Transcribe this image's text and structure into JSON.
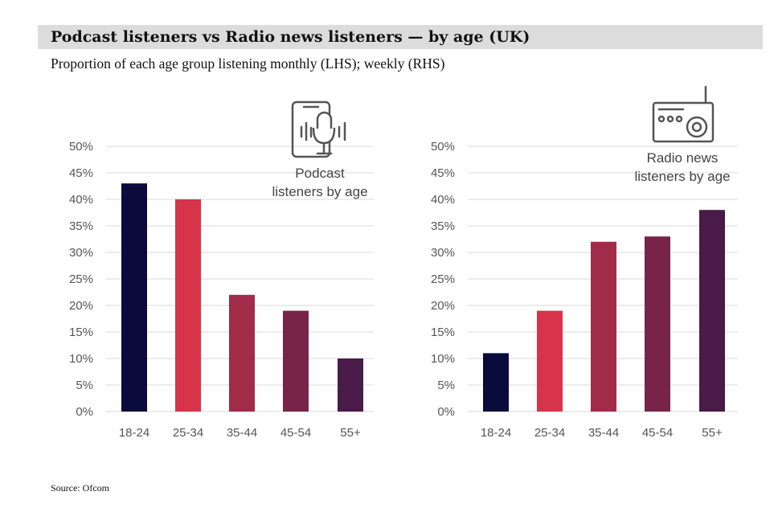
{
  "header": {
    "title": "Podcast listeners vs Radio news listeners — by age (UK)",
    "subtitle": "Proportion of each age group listening monthly (LHS); weekly (RHS)"
  },
  "footer": {
    "source": "Source: Ofcom"
  },
  "colors": {
    "bars": [
      "#0b0a3d",
      "#d6344a",
      "#a02c4a",
      "#772448",
      "#4a1a48"
    ],
    "grid": "#d9d9d9",
    "icon": "#555555"
  },
  "chart_data": [
    {
      "type": "bar",
      "title": "",
      "icon": "podcast-microphone-phone",
      "icon_label": [
        "Podcast",
        "listeners by age"
      ],
      "categories": [
        "18-24",
        "25-34",
        "35-44",
        "45-54",
        "55+"
      ],
      "values": [
        43,
        40,
        22,
        19,
        10
      ],
      "ylim": [
        0,
        50
      ],
      "yticks": [
        "0%",
        "5%",
        "10%",
        "15%",
        "20%",
        "25%",
        "30%",
        "35%",
        "40%",
        "45%",
        "50%"
      ],
      "grid": true,
      "xlabel": "",
      "ylabel": ""
    },
    {
      "type": "bar",
      "title": "",
      "icon": "radio",
      "icon_label": [
        "Radio news",
        "listeners by age"
      ],
      "categories": [
        "18-24",
        "25-34",
        "35-44",
        "45-54",
        "55+"
      ],
      "values": [
        11,
        19,
        32,
        33,
        38
      ],
      "ylim": [
        0,
        50
      ],
      "yticks": [
        "0%",
        "5%",
        "10%",
        "15%",
        "20%",
        "25%",
        "30%",
        "35%",
        "40%",
        "45%",
        "50%"
      ],
      "grid": true,
      "xlabel": "",
      "ylabel": ""
    }
  ]
}
